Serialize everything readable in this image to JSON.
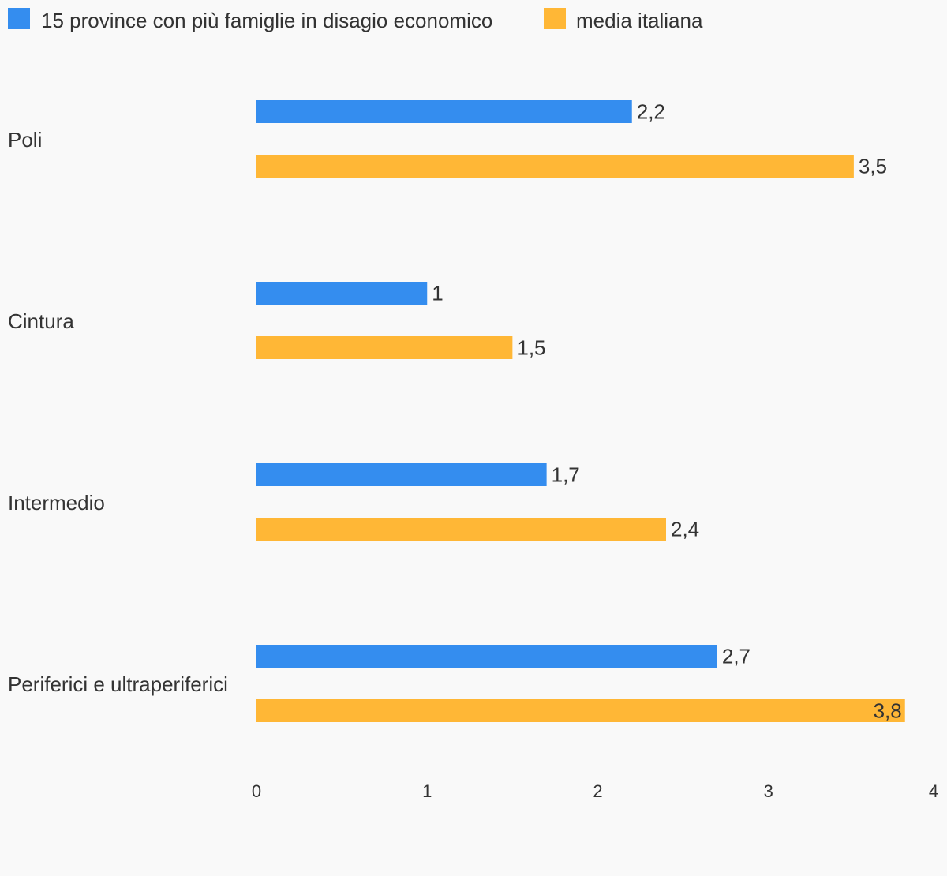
{
  "chart_data": {
    "type": "bar",
    "orientation": "horizontal",
    "categories": [
      "Poli",
      "Cintura",
      "Intermedio",
      "Periferici e ultraperiferici"
    ],
    "series": [
      {
        "name": "15 province con più famiglie in disagio economico",
        "color": "#348def",
        "values": [
          2.2,
          1,
          1.7,
          2.7
        ],
        "labels": [
          "2,2",
          "1",
          "1,7",
          "2,7"
        ]
      },
      {
        "name": "media italiana",
        "color": "#ffb736",
        "values": [
          3.5,
          1.5,
          2.4,
          3.8
        ],
        "labels": [
          "3,5",
          "1,5",
          "2,4",
          "3,8"
        ]
      }
    ],
    "xlim": [
      0,
      4
    ],
    "xticks": [
      "0",
      "1",
      "2",
      "3",
      "4"
    ],
    "grid": false,
    "legend_position": "top-left",
    "title": "",
    "xlabel": "",
    "ylabel": ""
  }
}
